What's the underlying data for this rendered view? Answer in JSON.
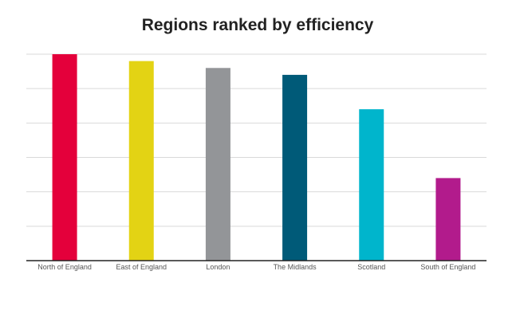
{
  "chart_data": {
    "type": "bar",
    "title": "Regions ranked by efficiency",
    "xlabel": "",
    "ylabel": "",
    "categories": [
      "North of England",
      "East of England",
      "London",
      "The Midlands",
      "Scotland",
      "South of England"
    ],
    "values": [
      6.0,
      5.8,
      5.6,
      5.4,
      4.4,
      2.4
    ],
    "colors": [
      "#e4003b",
      "#e3d314",
      "#939598",
      "#005a78",
      "#00b5cc",
      "#b21b8c"
    ],
    "ylim": [
      0,
      6
    ],
    "grid": true,
    "legend": "none"
  }
}
